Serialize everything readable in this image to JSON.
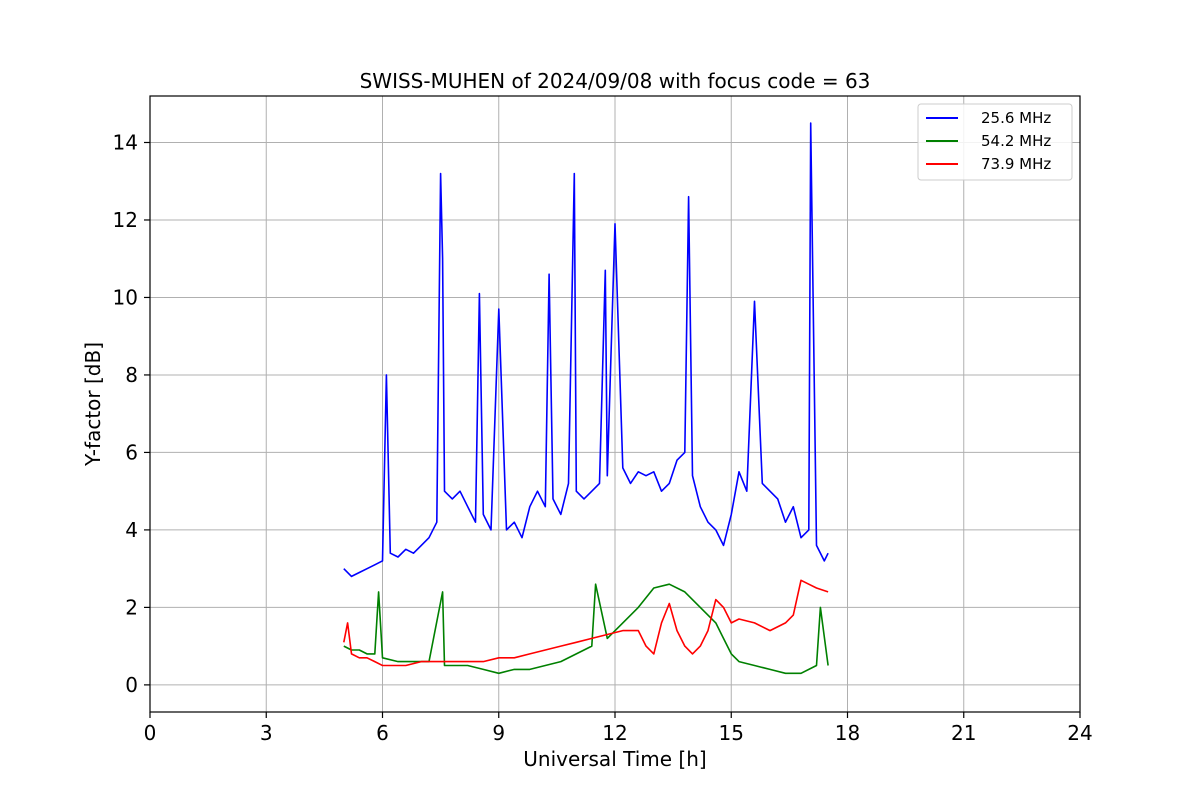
{
  "chart_data": {
    "type": "line",
    "title": "SWISS-MUHEN of 2024/09/08 with focus code = 63",
    "xlabel": "Universal Time [h]",
    "ylabel": "Y-factor [dB]",
    "xlim": [
      0,
      24
    ],
    "ylim": [
      -0.7,
      15.2
    ],
    "xticks": [
      0,
      3,
      6,
      9,
      12,
      15,
      18,
      21,
      24
    ],
    "yticks": [
      0,
      2,
      4,
      6,
      8,
      10,
      12,
      14
    ],
    "grid": true,
    "legend_position": "top-right",
    "series": [
      {
        "name": "25.6 MHz",
        "color": "#0000ff",
        "x": [
          5.0,
          5.2,
          5.4,
          5.6,
          5.8,
          6.0,
          6.1,
          6.2,
          6.4,
          6.6,
          6.8,
          7.0,
          7.2,
          7.4,
          7.5,
          7.55,
          7.6,
          7.8,
          8.0,
          8.2,
          8.4,
          8.5,
          8.6,
          8.8,
          9.0,
          9.2,
          9.4,
          9.6,
          9.8,
          10.0,
          10.2,
          10.3,
          10.4,
          10.6,
          10.8,
          10.95,
          11.0,
          11.2,
          11.4,
          11.6,
          11.75,
          11.8,
          12.0,
          12.2,
          12.4,
          12.6,
          12.8,
          13.0,
          13.2,
          13.4,
          13.6,
          13.8,
          13.9,
          14.0,
          14.2,
          14.4,
          14.6,
          14.8,
          15.0,
          15.2,
          15.4,
          15.6,
          15.8,
          16.0,
          16.2,
          16.4,
          16.6,
          16.8,
          17.0,
          17.05,
          17.2,
          17.4,
          17.5
        ],
        "y": [
          3.0,
          2.8,
          2.9,
          3.0,
          3.1,
          3.2,
          8.0,
          3.4,
          3.3,
          3.5,
          3.4,
          3.6,
          3.8,
          4.2,
          13.2,
          11.0,
          5.0,
          4.8,
          5.0,
          4.6,
          4.2,
          10.1,
          4.4,
          4.0,
          9.7,
          4.0,
          4.2,
          3.8,
          4.6,
          5.0,
          4.6,
          10.6,
          4.8,
          4.4,
          5.2,
          13.2,
          5.0,
          4.8,
          5.0,
          5.2,
          10.7,
          5.4,
          11.9,
          5.6,
          5.2,
          5.5,
          5.4,
          5.5,
          5.0,
          5.2,
          5.8,
          6.0,
          12.6,
          5.4,
          4.6,
          4.2,
          4.0,
          3.6,
          4.4,
          5.5,
          5.0,
          9.9,
          5.2,
          5.0,
          4.8,
          4.2,
          4.6,
          3.8,
          4.0,
          14.5,
          3.6,
          3.2,
          3.4
        ]
      },
      {
        "name": "54.2 MHz",
        "color": "#008000",
        "x": [
          5.0,
          5.2,
          5.4,
          5.6,
          5.8,
          5.9,
          6.0,
          6.4,
          6.8,
          7.2,
          7.55,
          7.6,
          7.8,
          8.2,
          8.6,
          9.0,
          9.4,
          9.8,
          10.2,
          10.6,
          11.0,
          11.4,
          11.5,
          11.8,
          12.2,
          12.6,
          13.0,
          13.4,
          13.8,
          14.2,
          14.6,
          14.8,
          15.0,
          15.2,
          15.6,
          16.0,
          16.4,
          16.8,
          17.2,
          17.3,
          17.5
        ],
        "y": [
          1.0,
          0.9,
          0.9,
          0.8,
          0.8,
          2.4,
          0.7,
          0.6,
          0.6,
          0.6,
          2.4,
          0.5,
          0.5,
          0.5,
          0.4,
          0.3,
          0.4,
          0.4,
          0.5,
          0.6,
          0.8,
          1.0,
          2.6,
          1.2,
          1.6,
          2.0,
          2.5,
          2.6,
          2.4,
          2.0,
          1.6,
          1.2,
          0.8,
          0.6,
          0.5,
          0.4,
          0.3,
          0.3,
          0.5,
          2.0,
          0.5
        ]
      },
      {
        "name": "73.9 MHz",
        "color": "#ff0000",
        "x": [
          5.0,
          5.1,
          5.2,
          5.4,
          5.6,
          5.8,
          6.0,
          6.2,
          6.6,
          7.0,
          7.4,
          7.8,
          8.2,
          8.6,
          9.0,
          9.4,
          9.8,
          10.2,
          10.6,
          11.0,
          11.4,
          11.8,
          12.2,
          12.6,
          12.8,
          13.0,
          13.2,
          13.4,
          13.6,
          13.8,
          14.0,
          14.2,
          14.4,
          14.6,
          14.8,
          15.0,
          15.2,
          15.6,
          16.0,
          16.4,
          16.6,
          16.8,
          17.0,
          17.2,
          17.5
        ],
        "y": [
          1.1,
          1.6,
          0.8,
          0.7,
          0.7,
          0.6,
          0.5,
          0.5,
          0.5,
          0.6,
          0.6,
          0.6,
          0.6,
          0.6,
          0.7,
          0.7,
          0.8,
          0.9,
          1.0,
          1.1,
          1.2,
          1.3,
          1.4,
          1.4,
          1.0,
          0.8,
          1.6,
          2.1,
          1.4,
          1.0,
          0.8,
          1.0,
          1.4,
          2.2,
          2.0,
          1.6,
          1.7,
          1.6,
          1.4,
          1.6,
          1.8,
          2.7,
          2.6,
          2.5,
          2.4
        ]
      }
    ]
  }
}
